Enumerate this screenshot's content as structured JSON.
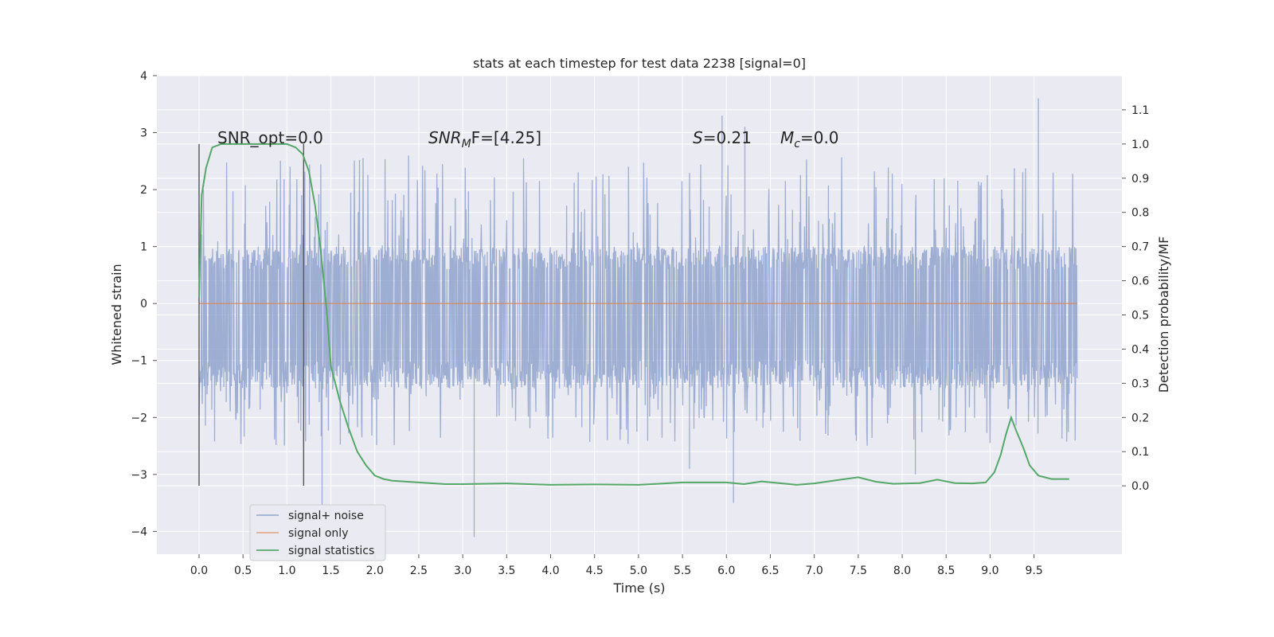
{
  "chart_data": {
    "type": "line",
    "title": "stats at each timestep for test data 2238 [signal=0]",
    "xlabel": "Time (s)",
    "ylabel": "Whitened strain",
    "ylabel_right": "Detection probability/MF",
    "xlim": [
      -0.48,
      10.5
    ],
    "ylim": [
      -4.4,
      4.0
    ],
    "ylim_right": [
      -0.2,
      1.2
    ],
    "grid": true,
    "legend_position": "lower-left",
    "x_ticks": [
      "0.0",
      "0.5",
      "1.0",
      "1.5",
      "2.0",
      "2.5",
      "3.0",
      "3.5",
      "4.0",
      "4.5",
      "5.0",
      "5.5",
      "6.0",
      "6.5",
      "7.0",
      "7.5",
      "8.0",
      "8.5",
      "9.0",
      "9.5"
    ],
    "y_ticks": [
      "4",
      "3",
      "2",
      "1",
      "0",
      "−1",
      "−2",
      "−3",
      "−4"
    ],
    "y_ticks_right": [
      "1.1",
      "1.0",
      "0.9",
      "0.8",
      "0.7",
      "0.6",
      "0.5",
      "0.4",
      "0.3",
      "0.2",
      "0.1",
      "0.0"
    ],
    "annotations": {
      "snr_opt": "SNR_opt=0.0",
      "snr_mf_base": "SNR",
      "snr_mf_sub": "M",
      "snr_mf_rest": "F=[4.25]",
      "s_italic": "S",
      "s_rest": "=0.21",
      "mc_base": "M",
      "mc_sub": "c",
      "mc_rest": "=0.0"
    },
    "markers_x": [
      0.0,
      1.19
    ],
    "series": [
      {
        "name": "signal+ noise",
        "color": "#8fa3cc",
        "x_range": [
          0.0,
          9.99
        ],
        "description_values": {
          "typical_min": -1.5,
          "typical_max": 1.0,
          "min": -4.2,
          "max": 3.6
        },
        "spikes": [
          [
            1.4,
            -3.6
          ],
          [
            3.13,
            -4.1
          ],
          [
            6.08,
            -3.5
          ],
          [
            9.55,
            3.6
          ],
          [
            5.95,
            3.3
          ],
          [
            6.21,
            3.1
          ],
          [
            5.58,
            -2.9
          ],
          [
            8.15,
            -3.0
          ]
        ]
      },
      {
        "name": "signal only",
        "color": "#dd8452",
        "x": [
          0.0,
          9.99
        ],
        "y": [
          0.0,
          0.0
        ]
      },
      {
        "name": "signal statistics",
        "color": "#55a868",
        "axis": "right",
        "x": [
          0.0,
          0.03,
          0.08,
          0.15,
          0.25,
          0.5,
          0.8,
          1.0,
          1.1,
          1.18,
          1.25,
          1.32,
          1.38,
          1.45,
          1.5,
          1.6,
          1.7,
          1.8,
          1.9,
          2.0,
          2.1,
          2.2,
          2.5,
          2.8,
          3.0,
          3.5,
          4.0,
          4.5,
          5.0,
          5.3,
          5.5,
          5.8,
          6.0,
          6.2,
          6.4,
          6.6,
          6.8,
          7.0,
          7.3,
          7.5,
          7.7,
          7.9,
          8.2,
          8.4,
          8.6,
          8.8,
          8.95,
          9.05,
          9.12,
          9.18,
          9.24,
          9.3,
          9.38,
          9.45,
          9.55,
          9.7,
          9.9
        ],
        "y": [
          0.55,
          0.85,
          0.93,
          0.99,
          1.0,
          1.0,
          1.0,
          1.0,
          0.99,
          0.97,
          0.92,
          0.82,
          0.7,
          0.52,
          0.35,
          0.25,
          0.17,
          0.1,
          0.06,
          0.03,
          0.02,
          0.015,
          0.01,
          0.005,
          0.005,
          0.007,
          0.003,
          0.004,
          0.003,
          0.007,
          0.01,
          0.01,
          0.01,
          0.005,
          0.013,
          0.008,
          0.003,
          0.007,
          0.018,
          0.025,
          0.012,
          0.006,
          0.008,
          0.018,
          0.008,
          0.007,
          0.01,
          0.04,
          0.09,
          0.15,
          0.2,
          0.16,
          0.11,
          0.06,
          0.03,
          0.02,
          0.02
        ]
      }
    ]
  },
  "colors": {
    "axes_bg": "#eaeaf2",
    "grid": "#ffffff",
    "marker_line": "#555555"
  }
}
